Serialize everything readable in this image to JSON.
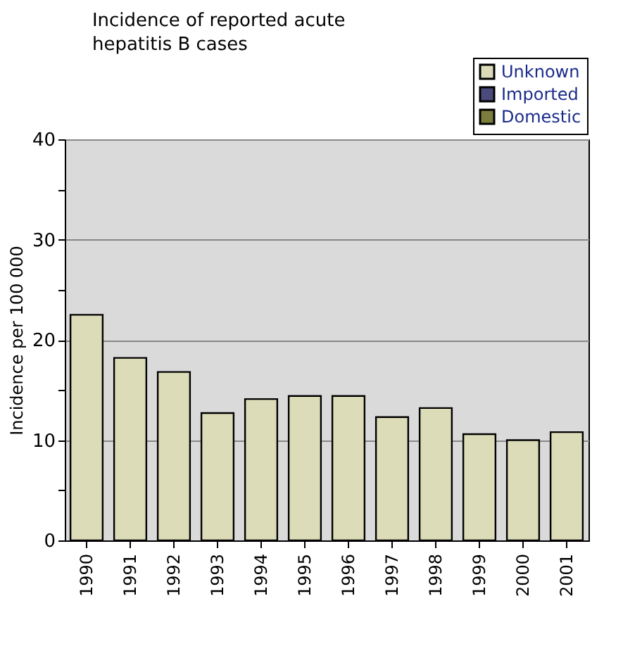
{
  "chart_data": {
    "type": "bar",
    "title": "Incidence of reported acute hepatitis B cases",
    "ylabel": "Incidence per 100 000",
    "categories": [
      "1990",
      "1991",
      "1992",
      "1993",
      "1994",
      "1995",
      "1996",
      "1997",
      "1998",
      "1999",
      "2000",
      "2001"
    ],
    "series": [
      {
        "name": "Unknown",
        "color": "#dcdcb8",
        "values": [
          22.5,
          18.2,
          16.8,
          12.7,
          14.1,
          14.4,
          14.4,
          12.3,
          13.2,
          10.6,
          10.0,
          10.8
        ]
      },
      {
        "name": "Imported",
        "color": "#4a4a7c",
        "values": [
          null,
          null,
          null,
          null,
          null,
          null,
          null,
          null,
          null,
          null,
          null,
          null
        ]
      },
      {
        "name": "Domestic",
        "color": "#7c7c3c",
        "values": [
          null,
          null,
          null,
          null,
          null,
          null,
          null,
          null,
          null,
          null,
          null,
          null
        ]
      }
    ],
    "stacked": true,
    "ylim": [
      0,
      40
    ],
    "yticks": [
      0,
      {
        "value": 5,
        "label": null
      },
      10,
      {
        "value": 15,
        "label": null
      },
      20,
      {
        "value": 25,
        "label": null
      },
      30,
      {
        "value": 35,
        "label": null
      },
      40
    ],
    "grid": "y",
    "legend": "top right"
  }
}
